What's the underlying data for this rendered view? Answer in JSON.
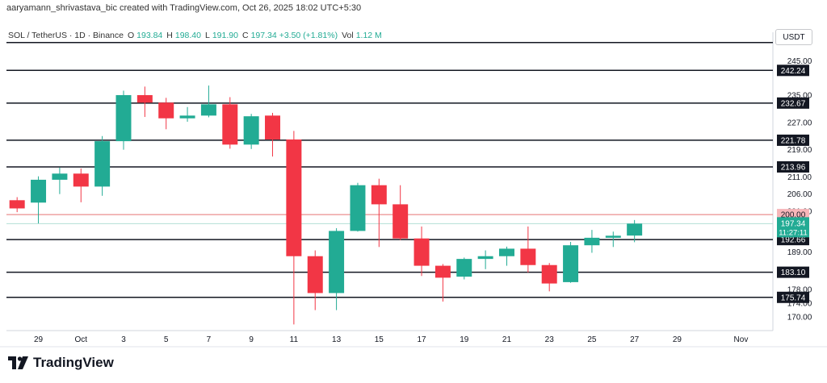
{
  "header": {
    "credit": "aaryamann_shrivastava_bic created with TradingView.com, Oct 26, 2025 18:02 UTC+5:30",
    "symbol": "SOL / TetherUS · 1D · Binance",
    "open_label": "O",
    "open": "193.84",
    "high_label": "H",
    "high": "198.40",
    "low_label": "L",
    "low": "191.90",
    "close_label": "C",
    "close": "197.34",
    "change": "+3.50 (+1.81%)",
    "volume_label": "Vol",
    "volume": "1.12 M",
    "unit": "USDT"
  },
  "branding": {
    "logo_text": "TradingView"
  },
  "colors": {
    "up": "#22ab94",
    "down": "#f23645",
    "level_line": "#131722",
    "red_level": "#e57373",
    "grid": "#eef0f3"
  },
  "chart_data": {
    "type": "candlestick",
    "y_scale": "linear",
    "ylim": [
      166,
      252
    ],
    "y_ticks": [
      245.0,
      235.0,
      227.0,
      219.0,
      211.0,
      206.0,
      201.0,
      189.0,
      178.0,
      174.0,
      170.0
    ],
    "x_ticks": [
      "29",
      "Oct",
      "3",
      "5",
      "7",
      "9",
      "11",
      "13",
      "15",
      "17",
      "19",
      "21",
      "23",
      "25",
      "27",
      "29",
      "Nov"
    ],
    "x_tick_positions": [
      1,
      3,
      5,
      7,
      9,
      11,
      13,
      15,
      17,
      19,
      21,
      23,
      25,
      27,
      29,
      31,
      34
    ],
    "x_range": [
      0,
      36
    ],
    "candles": [
      {
        "i": 0,
        "o": 204.2,
        "h": 205.1,
        "l": 200.7,
        "c": 201.8
      },
      {
        "i": 1,
        "o": 203.5,
        "h": 211.2,
        "l": 197.4,
        "c": 210.2
      },
      {
        "i": 2,
        "o": 210.2,
        "h": 213.8,
        "l": 206.0,
        "c": 212.0
      },
      {
        "i": 3,
        "o": 212.0,
        "h": 213.5,
        "l": 203.6,
        "c": 208.2
      },
      {
        "i": 4,
        "o": 208.2,
        "h": 223.0,
        "l": 205.5,
        "c": 221.5
      },
      {
        "i": 5,
        "o": 221.5,
        "h": 236.3,
        "l": 219.0,
        "c": 235.0
      },
      {
        "i": 6,
        "o": 235.0,
        "h": 237.5,
        "l": 228.6,
        "c": 232.8
      },
      {
        "i": 7,
        "o": 232.8,
        "h": 234.2,
        "l": 225.0,
        "c": 228.2
      },
      {
        "i": 8,
        "o": 228.2,
        "h": 231.5,
        "l": 227.2,
        "c": 229.0
      },
      {
        "i": 9,
        "o": 229.0,
        "h": 237.8,
        "l": 228.5,
        "c": 232.3
      },
      {
        "i": 10,
        "o": 232.3,
        "h": 234.4,
        "l": 219.3,
        "c": 220.5
      },
      {
        "i": 11,
        "o": 220.5,
        "h": 229.5,
        "l": 219.2,
        "c": 228.8
      },
      {
        "i": 12,
        "o": 229.0,
        "h": 229.8,
        "l": 217.0,
        "c": 222.0
      },
      {
        "i": 13,
        "o": 222.0,
        "h": 224.5,
        "l": 167.8,
        "c": 187.8
      },
      {
        "i": 14,
        "o": 187.8,
        "h": 189.5,
        "l": 172.0,
        "c": 177.0
      },
      {
        "i": 15,
        "o": 177.0,
        "h": 196.0,
        "l": 172.0,
        "c": 195.2
      },
      {
        "i": 16,
        "o": 195.2,
        "h": 209.3,
        "l": 195.0,
        "c": 208.6
      },
      {
        "i": 17,
        "o": 208.6,
        "h": 210.5,
        "l": 190.5,
        "c": 203.0
      },
      {
        "i": 18,
        "o": 203.0,
        "h": 208.6,
        "l": 192.5,
        "c": 193.0
      },
      {
        "i": 19,
        "o": 193.0,
        "h": 196.5,
        "l": 182.0,
        "c": 185.0
      },
      {
        "i": 20,
        "o": 185.0,
        "h": 185.5,
        "l": 174.5,
        "c": 181.5
      },
      {
        "i": 21,
        "o": 181.8,
        "h": 187.4,
        "l": 181.0,
        "c": 187.0
      },
      {
        "i": 22,
        "o": 187.0,
        "h": 189.5,
        "l": 184.0,
        "c": 187.8
      },
      {
        "i": 23,
        "o": 187.8,
        "h": 190.6,
        "l": 185.0,
        "c": 190.0
      },
      {
        "i": 24,
        "o": 190.0,
        "h": 196.5,
        "l": 183.0,
        "c": 185.2
      },
      {
        "i": 25,
        "o": 185.2,
        "h": 185.8,
        "l": 177.5,
        "c": 179.8
      },
      {
        "i": 26,
        "o": 180.2,
        "h": 192.0,
        "l": 180.0,
        "c": 191.0
      },
      {
        "i": 27,
        "o": 191.0,
        "h": 195.5,
        "l": 188.8,
        "c": 193.2
      },
      {
        "i": 28,
        "o": 193.2,
        "h": 195.0,
        "l": 190.5,
        "c": 193.8
      },
      {
        "i": 29,
        "o": 193.84,
        "h": 198.4,
        "l": 191.9,
        "c": 197.34
      }
    ],
    "levels": [
      {
        "value": 242.24,
        "label": "242.24"
      },
      {
        "value": 232.67,
        "label": "232.67"
      },
      {
        "value": 221.78,
        "label": "221.78"
      },
      {
        "value": 213.96,
        "label": "213.96"
      },
      {
        "value": 192.66,
        "label": "192.66"
      },
      {
        "value": 183.1,
        "label": "183.10"
      },
      {
        "value": 175.74,
        "label": "175.74"
      }
    ],
    "top_line": 250.4,
    "red_level": {
      "value": 200.0,
      "label": "200.00"
    },
    "last_price": {
      "value": 197.34,
      "label": "197.34",
      "countdown": "11:27:11"
    }
  }
}
